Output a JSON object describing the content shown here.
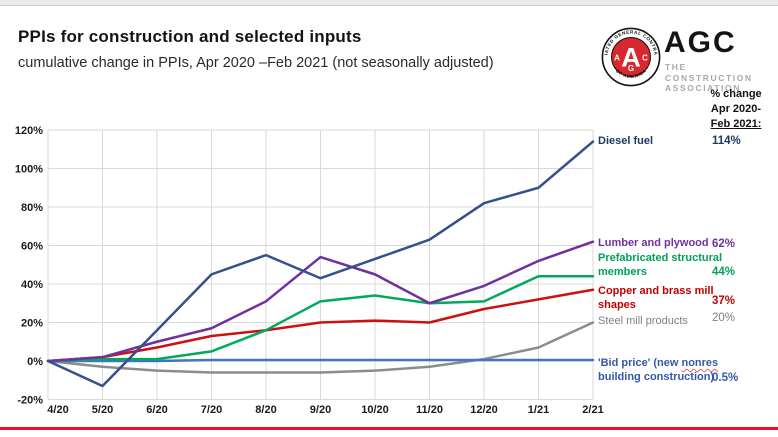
{
  "header": {
    "title": "PPIs for construction and selected inputs",
    "subtitle": "cumulative change in PPIs, Apr 2020 –Feb 2021 (not seasonally adjusted)"
  },
  "logo": {
    "acronym": "AGC",
    "tagline_line1": "THE CONSTRUCTION",
    "tagline_line2": "ASSOCIATION",
    "seal_text_top": "ASSOCIATED GENERAL CONTRACTORS",
    "seal_text_bottom": "• OF AMERICA •",
    "seal_letter_big": "A",
    "seal_letter_left": "A",
    "seal_letter_mid": "G",
    "seal_letter_right": "C"
  },
  "pct_column": {
    "line1": "% change",
    "line2": "Apr 2020-",
    "line3": "Feb 2021:"
  },
  "chart_data": {
    "type": "line",
    "title": "PPIs for construction and selected inputs",
    "x_labels": [
      "4/20",
      "5/20",
      "6/20",
      "7/20",
      "8/20",
      "9/20",
      "10/20",
      "11/20",
      "12/20",
      "1/21",
      "2/21"
    ],
    "y_tick_labels": [
      "-20%",
      "0%",
      "20%",
      "40%",
      "60%",
      "80%",
      "100%",
      "120%"
    ],
    "y_tick_values": [
      -20,
      0,
      20,
      40,
      60,
      80,
      100,
      120
    ],
    "ylim": [
      -20,
      120
    ],
    "grid": true,
    "grid_color": "#d9d9d9",
    "legend_position": "right",
    "series": [
      {
        "name": "Steel mill products",
        "label_line1": "Steel mill products",
        "label_line2": "",
        "pct_label": "20%",
        "color": "#8c8c8c",
        "label_color": "#7f7f7f",
        "values": [
          0,
          -3,
          -5,
          -6,
          -6,
          -6,
          -5,
          -3,
          1,
          7,
          20
        ]
      },
      {
        "name": "'Bid price' (new nonres building construction)",
        "label_line1a": "'Bid price' (new ",
        "label_line1b": "nonres",
        "label_line2": "building  construction)",
        "pct_label": "0.5%",
        "color": "#4472c4",
        "label_color": "#3558a8",
        "values": [
          0,
          0,
          0,
          0.5,
          0.5,
          0.5,
          0.5,
          0.5,
          0.5,
          0.5,
          0.5
        ]
      },
      {
        "name": "Copper and brass mill shapes",
        "label_line1": "Copper and brass mill",
        "label_line2": "shapes",
        "pct_label": "37%",
        "color": "#cc1111",
        "label_color": "#c00000",
        "values": [
          0,
          2,
          7,
          13,
          16,
          20,
          21,
          20,
          27,
          32,
          37
        ]
      },
      {
        "name": "Prefabricated structural members",
        "label_line1": "Prefabricated structural",
        "label_line2": "members",
        "pct_label": "44%",
        "color": "#00a95c",
        "label_color": "#00a15a",
        "values": [
          0,
          1,
          1,
          5,
          16,
          31,
          34,
          30,
          31,
          44,
          44
        ]
      },
      {
        "name": "Lumber and plywood",
        "label_line1": "Lumber and plywood",
        "label_line2": "",
        "pct_label": "62%",
        "color": "#7030a0",
        "label_color": "#7030a0",
        "values": [
          0,
          2,
          10,
          17,
          31,
          54,
          45,
          30,
          39,
          52,
          62
        ]
      },
      {
        "name": "Diesel fuel",
        "label_line1": "Diesel fuel",
        "label_line2": "",
        "pct_label": "114%",
        "color": "#35508c",
        "label_color": "#1f3864",
        "values": [
          0,
          -13,
          16,
          45,
          55,
          43,
          53,
          63,
          82,
          90,
          114
        ]
      }
    ]
  }
}
